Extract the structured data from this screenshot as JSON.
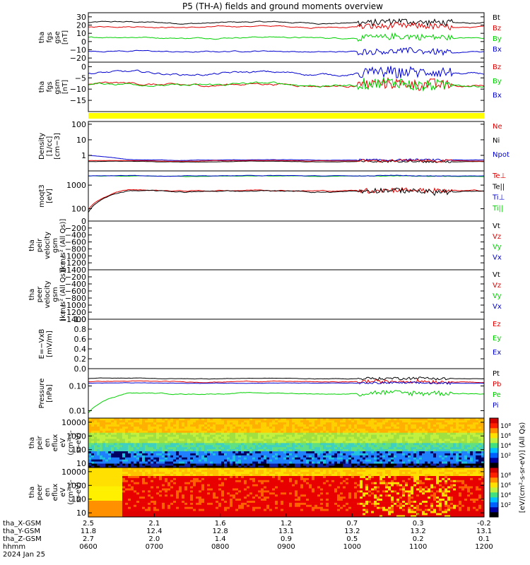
{
  "title": "P5 (TH-A) fields and ground moments overview",
  "date_label": "2024 Jan 25",
  "colors": {
    "black": "#000000",
    "red": "#e00000",
    "green": "#00d000",
    "blue": "#0000d0",
    "yellow": "#ffff00"
  },
  "panels": [
    {
      "id": "fgs-gse",
      "ylabel": [
        "tha",
        "fgs",
        "gse",
        "[nT]"
      ],
      "scale": "linear",
      "ylim": [
        -25,
        35
      ],
      "ticks": [
        30,
        20,
        10,
        0,
        -10,
        -20
      ],
      "tick_labels": [
        "30",
        "20",
        "10",
        "0",
        "−10",
        "−20"
      ],
      "legend": [
        {
          "text": "Bt",
          "color": "black"
        },
        {
          "text": "Bz",
          "color": "red"
        },
        {
          "text": "By",
          "color": "green"
        },
        {
          "text": "Bx",
          "color": "blue"
        }
      ]
    },
    {
      "id": "fgs-gsm",
      "ylabel": [
        "tha",
        "fgs",
        "gsm",
        "[nT]"
      ],
      "scale": "linear",
      "ylim": [
        -20,
        2
      ],
      "ticks": [
        0,
        -5,
        -10,
        -15
      ],
      "tick_labels": [
        "0",
        "−5",
        "−10",
        "−15"
      ],
      "legend": [
        {
          "text": "Bz",
          "color": "red"
        },
        {
          "text": "By",
          "color": "green"
        },
        {
          "text": "Bx",
          "color": "blue"
        }
      ]
    },
    {
      "id": "density",
      "ylabel": [
        "Density",
        "[1/cc]",
        "[cm−3]"
      ],
      "scale": "log",
      "ylim": [
        0.1,
        150
      ],
      "ticks": [
        100,
        10,
        1
      ],
      "tick_labels": [
        "100",
        "10",
        "1"
      ],
      "legend": [
        {
          "text": "Ne",
          "color": "red"
        },
        {
          "text": "Ni",
          "color": "black"
        },
        {
          "text": "Npot",
          "color": "blue"
        }
      ]
    },
    {
      "id": "temp",
      "ylabel": [
        "moqt3",
        "[eV]"
      ],
      "scale": "log",
      "ylim": [
        30,
        4000
      ],
      "ticks": [
        1000,
        100
      ],
      "tick_labels": [
        "1000",
        "100"
      ],
      "legend": [
        {
          "text": "Te⊥",
          "color": "red"
        },
        {
          "text": "Te||",
          "color": "black"
        },
        {
          "text": "Ti⊥",
          "color": "blue"
        },
        {
          "text": "Ti||",
          "color": "green"
        }
      ]
    },
    {
      "id": "peir-vel",
      "ylabel": [
        "tha",
        "peir",
        "velocity",
        "gsm",
        "[km/s² (All Qs)]"
      ],
      "scale": "linear",
      "ylim": [
        -1400,
        0
      ],
      "ticks": [
        0,
        -200,
        -400,
        -600,
        -800,
        -1000,
        -1200,
        -1400
      ],
      "tick_labels": [
        "0",
        "−200",
        "−400",
        "−600",
        "−800",
        "−1000",
        "−1200",
        "−1400"
      ],
      "legend": [
        {
          "text": "Vt",
          "color": "black"
        },
        {
          "text": "Vz",
          "color": "red"
        },
        {
          "text": "Vy",
          "color": "green"
        },
        {
          "text": "Vx",
          "color": "blue"
        }
      ]
    },
    {
      "id": "peer-vel",
      "ylabel": [
        "tha",
        "peer",
        "velocity",
        "gsm",
        "[km/s² (All Qs)]"
      ],
      "scale": "linear",
      "ylim": [
        -1400,
        0
      ],
      "ticks": [
        -200,
        -400,
        -600,
        -800,
        -1000,
        -1200,
        -1400
      ],
      "tick_labels": [
        "−200",
        "−400",
        "−600",
        "−800",
        "−1000",
        "−1200",
        "−1400"
      ],
      "legend": [
        {
          "text": "Vt",
          "color": "black"
        },
        {
          "text": "Vz",
          "color": "red"
        },
        {
          "text": "Vy",
          "color": "green"
        },
        {
          "text": "Vx",
          "color": "blue"
        }
      ]
    },
    {
      "id": "efield",
      "ylabel": [
        "E=−VxB",
        "[mV/m]"
      ],
      "scale": "linear",
      "ylim": [
        0,
        1
      ],
      "ticks": [
        1.0,
        0.8,
        0.6,
        0.4,
        0.2,
        0.0
      ],
      "tick_labels": [
        "1.0",
        "0.8",
        "0.6",
        "0.4",
        "0.2",
        "0.0"
      ],
      "legend": [
        {
          "text": "Ez",
          "color": "red"
        },
        {
          "text": "Ey",
          "color": "green"
        },
        {
          "text": "Ex",
          "color": "blue"
        }
      ]
    },
    {
      "id": "pressure",
      "ylabel": [
        "Pressure",
        "[nPa]"
      ],
      "scale": "log",
      "ylim": [
        0.005,
        0.5
      ],
      "ticks": [
        0.1,
        0.01
      ],
      "tick_labels": [
        "0.10",
        "0.01"
      ],
      "legend": [
        {
          "text": "Pt",
          "color": "black"
        },
        {
          "text": "Pb",
          "color": "red"
        },
        {
          "text": "Pe",
          "color": "green"
        },
        {
          "text": "Pi",
          "color": "blue"
        }
      ]
    },
    {
      "id": "peir-en",
      "ylabel": [
        "tha",
        "peir",
        "en",
        "eflux",
        "eV",
        "(cm²-s-",
        "sr-eV)"
      ],
      "scale": "log",
      "ylim": [
        5,
        20000
      ],
      "ticks": [
        10000,
        1000,
        100,
        10
      ],
      "tick_labels": [
        "10000",
        "1000",
        "100",
        "10"
      ],
      "legend": []
    },
    {
      "id": "peer-en",
      "ylabel": [
        "tha",
        "peer",
        "en",
        "eflux",
        "eV",
        "(cm²-s-",
        "sr-eV)"
      ],
      "scale": "log",
      "ylim": [
        5,
        20000
      ],
      "ticks": [
        10000,
        1000,
        100,
        10
      ],
      "tick_labels": [
        "10000",
        "1000",
        "100",
        "10"
      ],
      "legend": []
    }
  ],
  "colorbar": {
    "label": "[eV/(cm²-s-sr-eV)] (All Qs)",
    "ion_ticks": [
      "10⁸",
      "10⁶",
      "10⁴",
      "10²"
    ],
    "elec_ticks": [
      "10⁸",
      "10⁶",
      "10⁴",
      "10²"
    ]
  },
  "xaxis": {
    "row_labels": [
      "tha_X-GSM",
      "tha_Y-GSM",
      "tha_Z-GSM",
      "hhmm"
    ],
    "ticks": [
      {
        "x": "2.5",
        "y": "11.8",
        "z": "2.7",
        "hhmm": "0600"
      },
      {
        "x": "2.1",
        "y": "12.4",
        "z": "2.0",
        "hhmm": "0700"
      },
      {
        "x": "1.6",
        "y": "12.8",
        "z": "1.4",
        "hhmm": "0800"
      },
      {
        "x": "1.2",
        "y": "13.1",
        "z": "0.9",
        "hhmm": "0900"
      },
      {
        "x": "0.7",
        "y": "13.2",
        "z": "0.5",
        "hhmm": "1000"
      },
      {
        "x": "0.3",
        "y": "13.2",
        "z": "0.2",
        "hhmm": "1100"
      },
      {
        "x": "-0.2",
        "y": "13.1",
        "z": "0.1",
        "hhmm": "1200"
      }
    ]
  },
  "chart_data": {
    "type": "line",
    "time_range": [
      "0600",
      "1200"
    ],
    "series_levels": {
      "fgs_gse": {
        "Bt": 23,
        "Bz": 18,
        "By": 5,
        "Bx": -12
      },
      "fgs_gsm": {
        "Bz": -8,
        "By": -8,
        "Bx": -3
      },
      "density": {
        "Ne": 0.45,
        "Ni": 0.4,
        "Npot": 0.5
      },
      "temperature": {
        "Te_perp": 600,
        "Te_par": 550,
        "Ti_perp": 2500,
        "Ti_par": 2400
      },
      "pressure": {
        "Pt": 0.2,
        "Pb": 0.15,
        "Pe": 0.05,
        "Pi": 0.13
      }
    }
  }
}
